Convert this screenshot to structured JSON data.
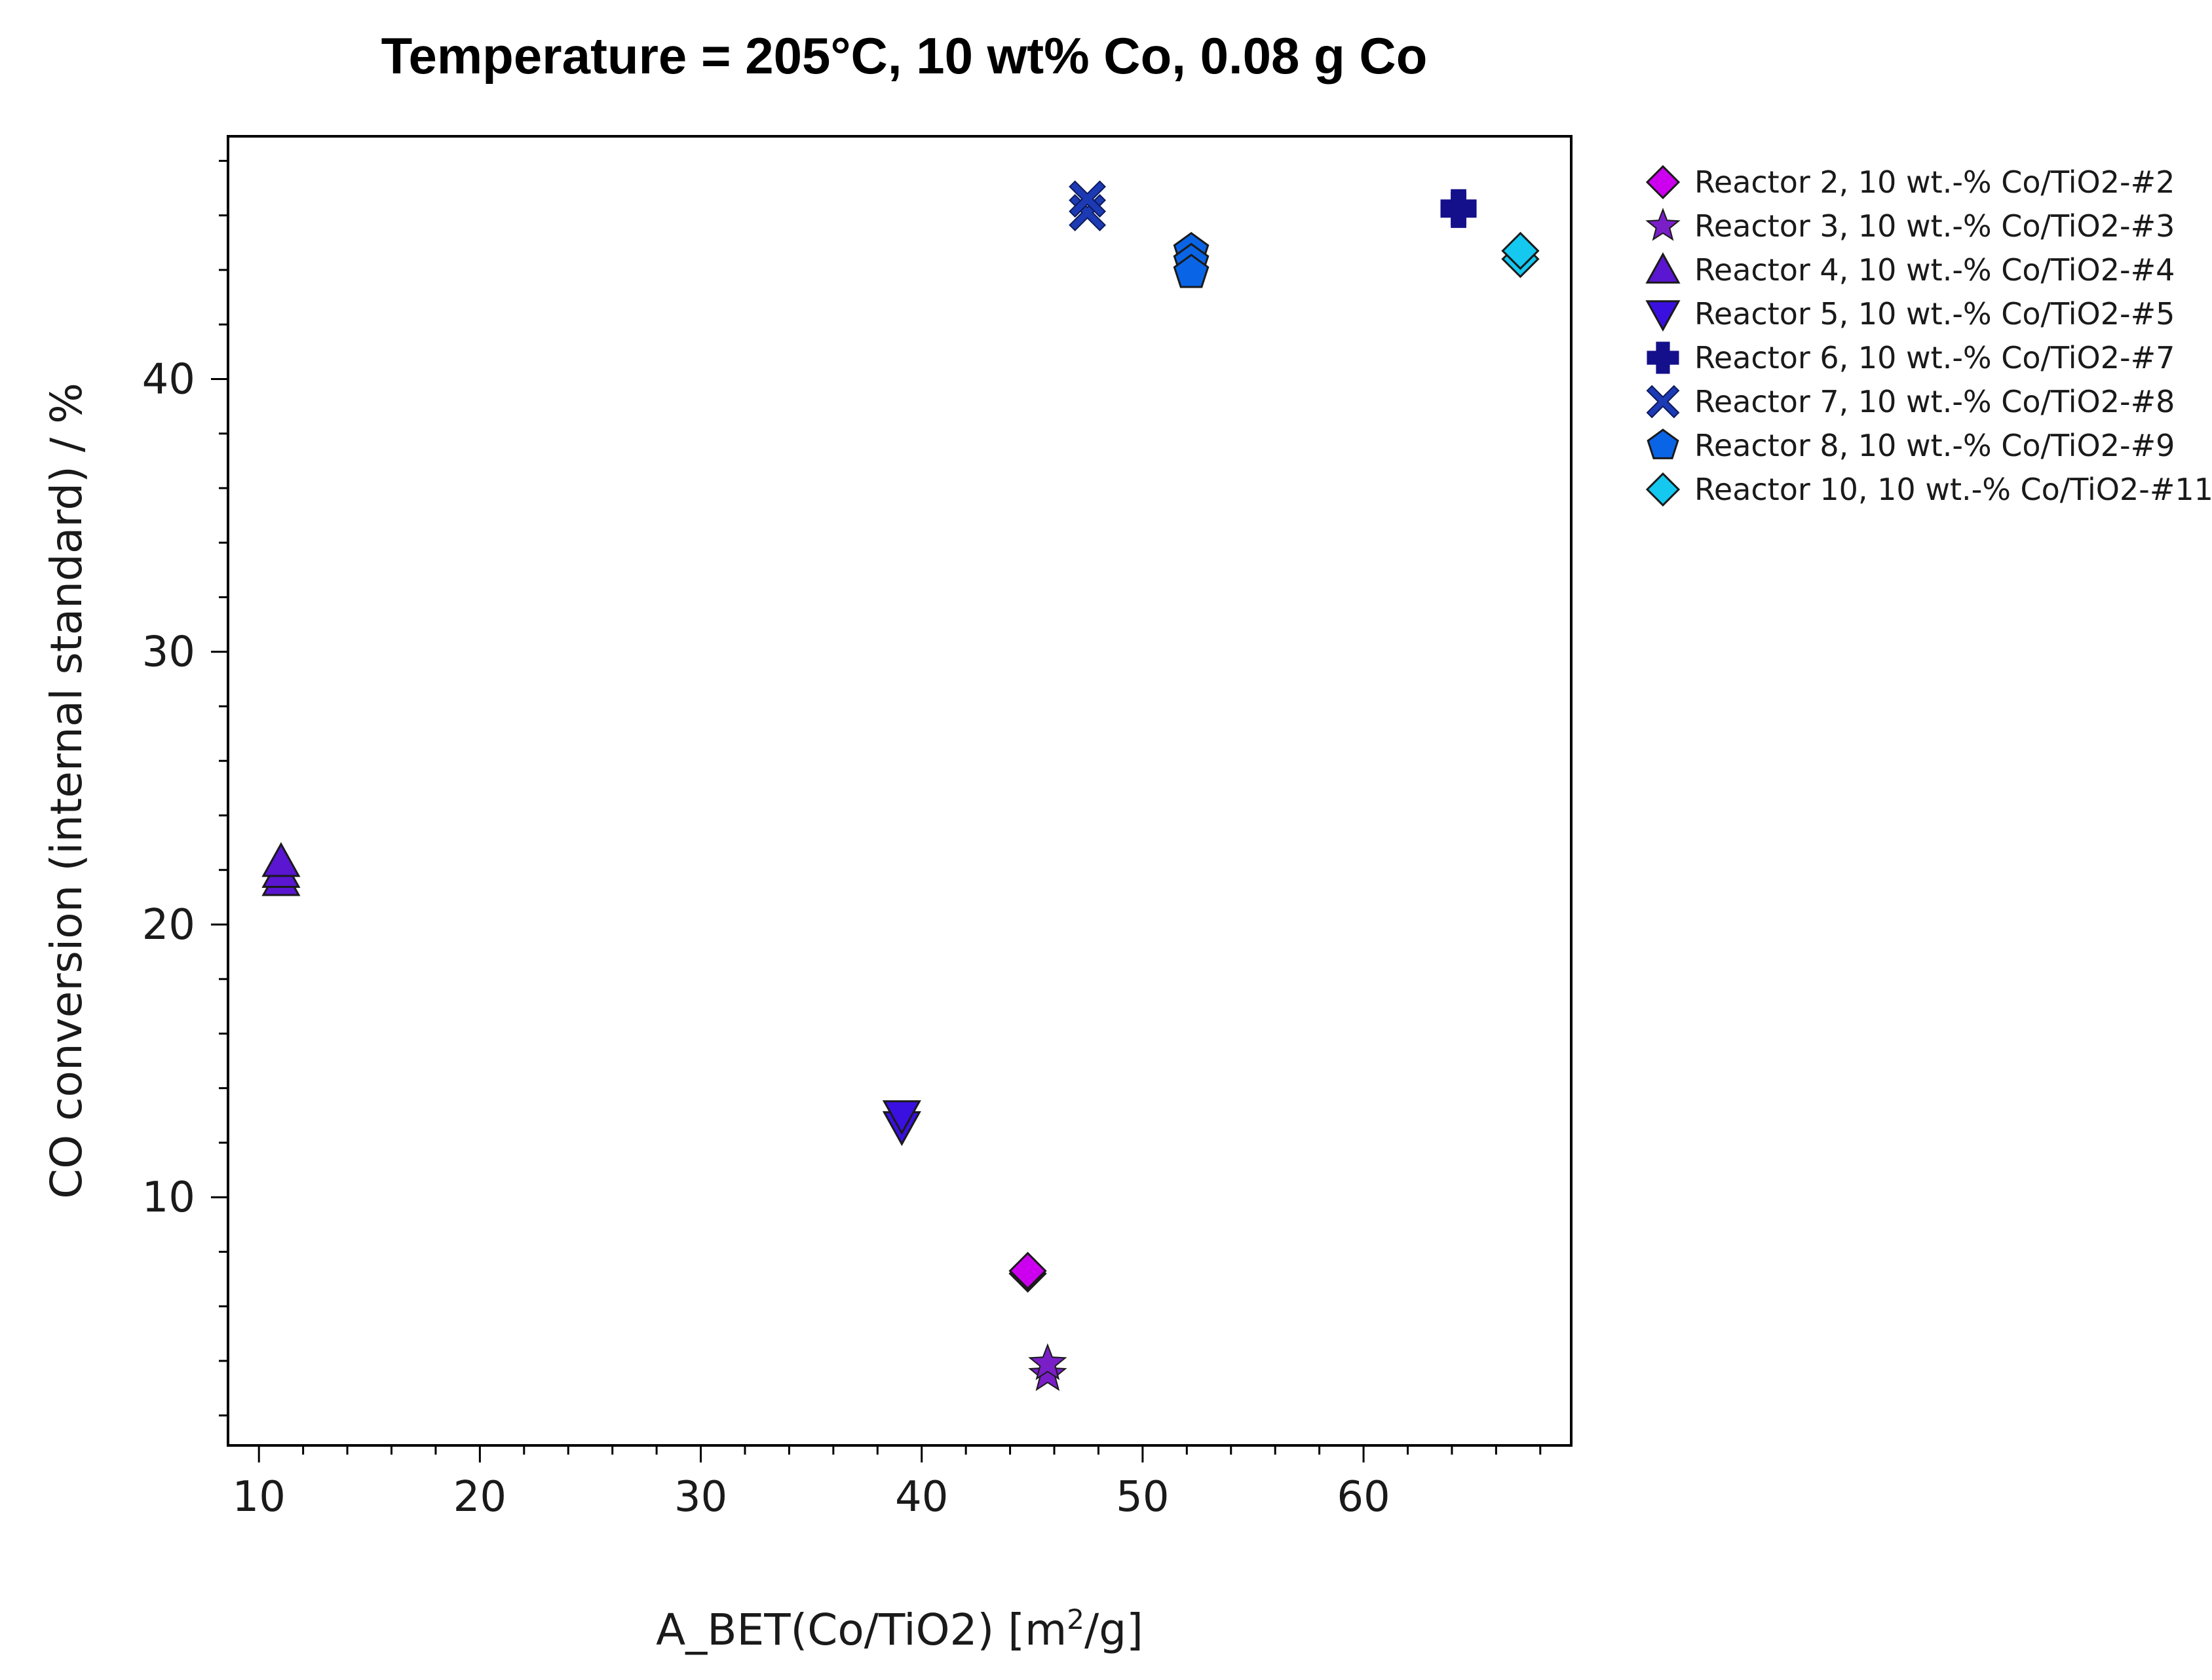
{
  "chart_data": {
    "type": "scatter",
    "title": "Temperature = 205°C, 10 wt% Co, 0.08 g Co",
    "xlabel": {
      "base": "A_BET(Co/TiO2) [m",
      "sup": "2",
      "tail": "/g]"
    },
    "ylabel": "CO conversion (internal standard) / %",
    "xlim": [
      8.6,
      69.4
    ],
    "ylim": [
      0.9,
      48.9
    ],
    "x_ticks": [
      10,
      20,
      30,
      40,
      50,
      60
    ],
    "y_ticks": [
      10,
      20,
      30,
      40
    ],
    "x_minor_step": 2,
    "y_minor_step": 2,
    "grid": false,
    "legend_position": "right",
    "series": [
      {
        "name": "Reactor 2, 10 wt.-% Co/TiO2-#2",
        "marker": "diamond",
        "color": "#cc00ee",
        "points": [
          {
            "x": 44.8,
            "y": 7.2
          },
          {
            "x": 44.8,
            "y": 7.3
          }
        ]
      },
      {
        "name": "Reactor 3, 10 wt.-% Co/TiO2-#3",
        "marker": "star",
        "color": "#7a1fc8",
        "points": [
          {
            "x": 45.7,
            "y": 3.5
          },
          {
            "x": 45.7,
            "y": 3.9
          }
        ]
      },
      {
        "name": "Reactor 4, 10 wt.-% Co/TiO2-#4",
        "marker": "triangle-up",
        "color": "#5a16d0",
        "points": [
          {
            "x": 11.0,
            "y": 21.6
          },
          {
            "x": 11.0,
            "y": 21.9
          },
          {
            "x": 11.0,
            "y": 22.3
          }
        ]
      },
      {
        "name": "Reactor 5, 10 wt.-% Co/TiO2-#5",
        "marker": "triangle-down",
        "color": "#3a10e0",
        "points": [
          {
            "x": 39.1,
            "y": 12.6
          },
          {
            "x": 39.1,
            "y": 13.0
          }
        ]
      },
      {
        "name": "Reactor 6, 10 wt.-% Co/TiO2-#7",
        "marker": "plus",
        "color": "#14108c",
        "points": [
          {
            "x": 64.3,
            "y": 46.2
          },
          {
            "x": 64.3,
            "y": 46.3
          }
        ]
      },
      {
        "name": "Reactor 7, 10 wt.-% Co/TiO2-#8",
        "marker": "x",
        "color": "#1c3ab4",
        "points": [
          {
            "x": 47.5,
            "y": 46.1
          },
          {
            "x": 47.5,
            "y": 46.6
          }
        ]
      },
      {
        "name": "Reactor 8, 10 wt.-% Co/TiO2-#9",
        "marker": "pentagon",
        "color": "#0a64e6",
        "points": [
          {
            "x": 52.2,
            "y": 44.7
          },
          {
            "x": 52.2,
            "y": 44.3
          },
          {
            "x": 52.2,
            "y": 43.9
          }
        ]
      },
      {
        "name": "Reactor 10, 10 wt.-% Co/TiO2-#11",
        "marker": "diamond",
        "color": "#14c8f0",
        "points": [
          {
            "x": 67.1,
            "y": 44.4
          },
          {
            "x": 67.1,
            "y": 44.7
          }
        ]
      }
    ]
  }
}
